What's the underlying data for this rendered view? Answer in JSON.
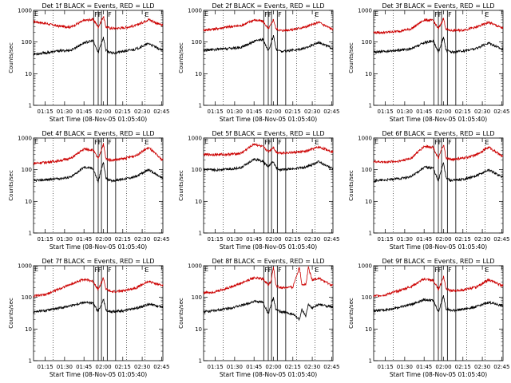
{
  "chart_data": {
    "type": "line",
    "y_scale": "log",
    "ylim": [
      1,
      1000
    ],
    "y_ticks": [
      "1",
      "10",
      "100",
      "1000"
    ],
    "x_ticks": [
      "01:15",
      "01:30",
      "01:45",
      "02:00",
      "02:15",
      "02:30",
      "02:45"
    ],
    "x_minutes": [
      75,
      90,
      105,
      120,
      135,
      150,
      165
    ],
    "xlim_minutes": [
      66,
      166
    ],
    "xlabel": "Start Time (08-Nov-05 01:05:40)",
    "ylabel": "Counts/sec",
    "series_colors": {
      "events": "#000000",
      "lld": "#cc0000"
    },
    "vertical_lines_minutes": [
      112.5,
      116,
      118.5,
      123,
      129.5
    ],
    "dotted_lines_minutes": [
      81,
      138,
      152
    ],
    "event_marker": "E",
    "marker_pairs": [
      "FF",
      "F"
    ],
    "panels": [
      {
        "title": "Det 1f BLACK = Events, RED = LLD",
        "lld": [
          [
            66,
            450
          ],
          [
            75,
            390
          ],
          [
            85,
            320
          ],
          [
            95,
            300
          ],
          [
            105,
            480
          ],
          [
            112,
            520
          ],
          [
            116,
            300
          ],
          [
            118,
            420
          ],
          [
            120,
            650
          ],
          [
            122,
            300
          ],
          [
            126,
            270
          ],
          [
            135,
            280
          ],
          [
            145,
            330
          ],
          [
            155,
            520
          ],
          [
            165,
            340
          ]
        ],
        "events": [
          [
            66,
            42
          ],
          [
            75,
            45
          ],
          [
            85,
            52
          ],
          [
            95,
            55
          ],
          [
            105,
            95
          ],
          [
            112,
            110
          ],
          [
            116,
            45
          ],
          [
            118,
            85
          ],
          [
            120,
            140
          ],
          [
            122,
            55
          ],
          [
            126,
            45
          ],
          [
            135,
            50
          ],
          [
            145,
            60
          ],
          [
            155,
            90
          ],
          [
            165,
            55
          ]
        ]
      },
      {
        "title": "Det 2f BLACK = Events, RED = LLD",
        "lld": [
          [
            66,
            240
          ],
          [
            75,
            260
          ],
          [
            85,
            300
          ],
          [
            95,
            330
          ],
          [
            105,
            500
          ],
          [
            112,
            450
          ],
          [
            116,
            260
          ],
          [
            118,
            350
          ],
          [
            120,
            520
          ],
          [
            122,
            260
          ],
          [
            126,
            230
          ],
          [
            135,
            250
          ],
          [
            145,
            300
          ],
          [
            155,
            420
          ],
          [
            165,
            260
          ]
        ],
        "events": [
          [
            66,
            55
          ],
          [
            75,
            58
          ],
          [
            85,
            62
          ],
          [
            95,
            68
          ],
          [
            105,
            105
          ],
          [
            112,
            120
          ],
          [
            116,
            50
          ],
          [
            118,
            90
          ],
          [
            120,
            160
          ],
          [
            122,
            60
          ],
          [
            126,
            50
          ],
          [
            135,
            55
          ],
          [
            145,
            65
          ],
          [
            155,
            100
          ],
          [
            165,
            65
          ]
        ]
      },
      {
        "title": "Det 3f BLACK = Events, RED = LLD",
        "lld": [
          [
            66,
            200
          ],
          [
            75,
            200
          ],
          [
            85,
            220
          ],
          [
            95,
            260
          ],
          [
            105,
            500
          ],
          [
            112,
            480
          ],
          [
            116,
            260
          ],
          [
            118,
            380
          ],
          [
            120,
            560
          ],
          [
            122,
            250
          ],
          [
            126,
            230
          ],
          [
            135,
            240
          ],
          [
            145,
            290
          ],
          [
            155,
            420
          ],
          [
            165,
            280
          ]
        ],
        "events": [
          [
            66,
            48
          ],
          [
            75,
            50
          ],
          [
            85,
            55
          ],
          [
            95,
            60
          ],
          [
            105,
            95
          ],
          [
            112,
            110
          ],
          [
            116,
            48
          ],
          [
            118,
            80
          ],
          [
            120,
            145
          ],
          [
            122,
            55
          ],
          [
            126,
            48
          ],
          [
            135,
            52
          ],
          [
            145,
            62
          ],
          [
            155,
            95
          ],
          [
            165,
            60
          ]
        ]
      },
      {
        "title": "Det 4f BLACK = Events, RED = LLD",
        "lld": [
          [
            66,
            160
          ],
          [
            75,
            170
          ],
          [
            85,
            190
          ],
          [
            95,
            230
          ],
          [
            105,
            450
          ],
          [
            112,
            420
          ],
          [
            116,
            220
          ],
          [
            118,
            380
          ],
          [
            120,
            650
          ],
          [
            122,
            220
          ],
          [
            126,
            200
          ],
          [
            135,
            220
          ],
          [
            145,
            280
          ],
          [
            155,
            500
          ],
          [
            165,
            210
          ]
        ],
        "events": [
          [
            66,
            45
          ],
          [
            75,
            48
          ],
          [
            85,
            52
          ],
          [
            95,
            58
          ],
          [
            105,
            120
          ],
          [
            112,
            110
          ],
          [
            116,
            40
          ],
          [
            118,
            90
          ],
          [
            120,
            170
          ],
          [
            122,
            55
          ],
          [
            126,
            45
          ],
          [
            135,
            50
          ],
          [
            145,
            60
          ],
          [
            155,
            100
          ],
          [
            165,
            55
          ]
        ]
      },
      {
        "title": "Det 5f BLACK = Events, RED = LLD",
        "lld": [
          [
            66,
            300
          ],
          [
            75,
            300
          ],
          [
            85,
            305
          ],
          [
            95,
            330
          ],
          [
            105,
            650
          ],
          [
            112,
            520
          ],
          [
            116,
            380
          ],
          [
            118,
            430
          ],
          [
            120,
            520
          ],
          [
            122,
            360
          ],
          [
            126,
            340
          ],
          [
            135,
            350
          ],
          [
            145,
            380
          ],
          [
            155,
            520
          ],
          [
            165,
            380
          ]
        ],
        "events": [
          [
            66,
            100
          ],
          [
            75,
            98
          ],
          [
            85,
            105
          ],
          [
            95,
            115
          ],
          [
            105,
            220
          ],
          [
            112,
            180
          ],
          [
            116,
            120
          ],
          [
            118,
            150
          ],
          [
            120,
            180
          ],
          [
            122,
            115
          ],
          [
            126,
            100
          ],
          [
            135,
            105
          ],
          [
            145,
            120
          ],
          [
            155,
            180
          ],
          [
            165,
            110
          ]
        ]
      },
      {
        "title": "Det 6f BLACK = Events, RED = LLD",
        "lld": [
          [
            66,
            180
          ],
          [
            75,
            175
          ],
          [
            85,
            185
          ],
          [
            95,
            230
          ],
          [
            105,
            550
          ],
          [
            112,
            520
          ],
          [
            116,
            220
          ],
          [
            118,
            380
          ],
          [
            120,
            620
          ],
          [
            122,
            230
          ],
          [
            126,
            210
          ],
          [
            135,
            230
          ],
          [
            145,
            290
          ],
          [
            155,
            520
          ],
          [
            165,
            270
          ]
        ],
        "events": [
          [
            66,
            45
          ],
          [
            75,
            47
          ],
          [
            85,
            52
          ],
          [
            95,
            60
          ],
          [
            105,
            120
          ],
          [
            112,
            115
          ],
          [
            116,
            42
          ],
          [
            118,
            90
          ],
          [
            120,
            175
          ],
          [
            122,
            55
          ],
          [
            126,
            45
          ],
          [
            135,
            50
          ],
          [
            145,
            62
          ],
          [
            155,
            100
          ],
          [
            165,
            60
          ]
        ]
      },
      {
        "title": "Det 7f BLACK = Events, RED = LLD",
        "lld": [
          [
            66,
            110
          ],
          [
            75,
            120
          ],
          [
            85,
            180
          ],
          [
            95,
            260
          ],
          [
            105,
            380
          ],
          [
            112,
            320
          ],
          [
            116,
            180
          ],
          [
            118,
            260
          ],
          [
            120,
            420
          ],
          [
            122,
            180
          ],
          [
            126,
            150
          ],
          [
            135,
            160
          ],
          [
            145,
            200
          ],
          [
            155,
            320
          ],
          [
            165,
            240
          ]
        ],
        "events": [
          [
            66,
            35
          ],
          [
            75,
            38
          ],
          [
            85,
            45
          ],
          [
            95,
            55
          ],
          [
            105,
            70
          ],
          [
            112,
            65
          ],
          [
            116,
            35
          ],
          [
            118,
            55
          ],
          [
            120,
            90
          ],
          [
            122,
            40
          ],
          [
            126,
            35
          ],
          [
            135,
            38
          ],
          [
            145,
            45
          ],
          [
            155,
            60
          ],
          [
            165,
            50
          ]
        ]
      },
      {
        "title": "Det 8f BLACK = Events, RED = LLD",
        "lld": [
          [
            66,
            140
          ],
          [
            75,
            150
          ],
          [
            85,
            200
          ],
          [
            95,
            280
          ],
          [
            105,
            420
          ],
          [
            112,
            380
          ],
          [
            116,
            250
          ],
          [
            118,
            320
          ],
          [
            120,
            900
          ],
          [
            122,
            230
          ],
          [
            126,
            200
          ],
          [
            135,
            210
          ],
          [
            140,
            900
          ],
          [
            142,
            260
          ],
          [
            145,
            250
          ],
          [
            147,
            900
          ],
          [
            150,
            360
          ],
          [
            155,
            400
          ],
          [
            165,
            240
          ]
        ],
        "events": [
          [
            66,
            35
          ],
          [
            75,
            38
          ],
          [
            85,
            45
          ],
          [
            95,
            55
          ],
          [
            105,
            75
          ],
          [
            112,
            70
          ],
          [
            116,
            30
          ],
          [
            118,
            55
          ],
          [
            120,
            95
          ],
          [
            122,
            40
          ],
          [
            126,
            35
          ],
          [
            135,
            30
          ],
          [
            140,
            20
          ],
          [
            142,
            40
          ],
          [
            145,
            25
          ],
          [
            147,
            60
          ],
          [
            150,
            45
          ],
          [
            155,
            60
          ],
          [
            165,
            50
          ]
        ]
      },
      {
        "title": "Det 9f BLACK = Events, RED = LLD",
        "lld": [
          [
            66,
            110
          ],
          [
            75,
            120
          ],
          [
            85,
            160
          ],
          [
            95,
            220
          ],
          [
            105,
            380
          ],
          [
            112,
            340
          ],
          [
            116,
            180
          ],
          [
            118,
            270
          ],
          [
            120,
            460
          ],
          [
            122,
            190
          ],
          [
            126,
            160
          ],
          [
            135,
            170
          ],
          [
            145,
            210
          ],
          [
            155,
            360
          ],
          [
            165,
            240
          ]
        ],
        "events": [
          [
            66,
            38
          ],
          [
            75,
            40
          ],
          [
            85,
            48
          ],
          [
            95,
            60
          ],
          [
            105,
            85
          ],
          [
            112,
            80
          ],
          [
            116,
            35
          ],
          [
            118,
            60
          ],
          [
            120,
            110
          ],
          [
            122,
            45
          ],
          [
            126,
            38
          ],
          [
            135,
            42
          ],
          [
            145,
            50
          ],
          [
            155,
            70
          ],
          [
            165,
            55
          ]
        ]
      }
    ]
  }
}
